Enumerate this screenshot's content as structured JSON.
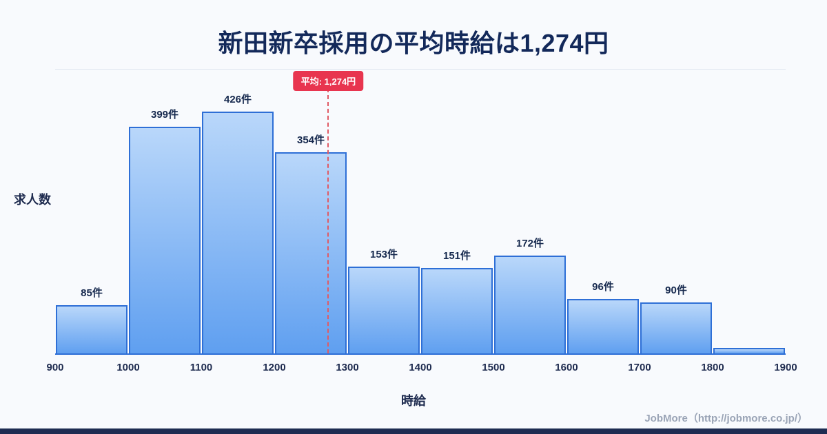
{
  "page": {
    "title": "新田新卒採用の平均時給は1,274円",
    "footer": "JobMore（http://jobmore.co.jp/）"
  },
  "chart_data": {
    "type": "bar",
    "title": "新田新卒採用の平均時給は1,274円",
    "xlabel": "時給",
    "ylabel": "求人数",
    "bin_edges": [
      900,
      1000,
      1100,
      1200,
      1300,
      1400,
      1500,
      1600,
      1700,
      1800,
      1900
    ],
    "x_ticks": [
      "900",
      "1000",
      "1100",
      "1200",
      "1300",
      "1400",
      "1500",
      "1600",
      "1700",
      "1800",
      "1900"
    ],
    "values": [
      85,
      399,
      426,
      354,
      153,
      151,
      172,
      96,
      90,
      10
    ],
    "bar_labels": [
      "85件",
      "399件",
      "426件",
      "354件",
      "153件",
      "151件",
      "172件",
      "96件",
      "90件",
      ""
    ],
    "average": {
      "value": 1274,
      "label": "平均: 1,274円"
    },
    "ylim": [
      0,
      500
    ],
    "grid": "top-line-only",
    "legend": "none",
    "colors": {
      "bar_fill_top": "#b9d7fa",
      "bar_fill_bottom": "#5f9ff0",
      "bar_border": "#2e6fd6",
      "average_line": "#e05a64",
      "badge_background": "#e8354f",
      "badge_text": "#ffffff",
      "title_text": "#13295a",
      "axis_text": "#1e2b4f",
      "footer_text": "#9aa4b6",
      "background": "#f8fafd",
      "bottom_strip": "#1e2c52"
    }
  }
}
